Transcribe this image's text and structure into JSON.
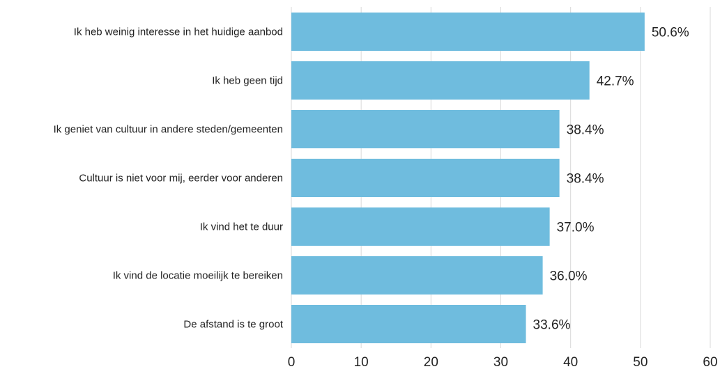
{
  "chart_data": {
    "type": "bar",
    "orientation": "horizontal",
    "title": "",
    "xlabel": "",
    "ylabel": "",
    "categories": [
      "Ik heb weinig interesse in het huidige aanbod",
      "Ik heb geen tijd",
      "Ik geniet van cultuur in andere steden/gemeenten",
      "Cultuur is niet voor mij, eerder voor anderen",
      "Ik vind het te duur",
      "Ik vind de locatie moeilijk te bereiken",
      "De afstand is te groot"
    ],
    "values": [
      50.6,
      42.7,
      38.4,
      38.4,
      37.0,
      36.0,
      33.6
    ],
    "value_labels": [
      "50.6%",
      "42.7%",
      "38.4%",
      "38.4%",
      "37.0%",
      "36.0%",
      "33.6%"
    ],
    "xlim": [
      0,
      60
    ],
    "xticks": [
      0,
      10,
      20,
      30,
      40,
      50,
      60
    ],
    "xtick_labels": [
      "0",
      "10",
      "20",
      "30",
      "40",
      "50",
      "60"
    ],
    "grid": "vertical",
    "legend": "none",
    "colors": {
      "bar": "#6fbcde",
      "grid": "#d9d9d9",
      "text": "#222222"
    }
  }
}
